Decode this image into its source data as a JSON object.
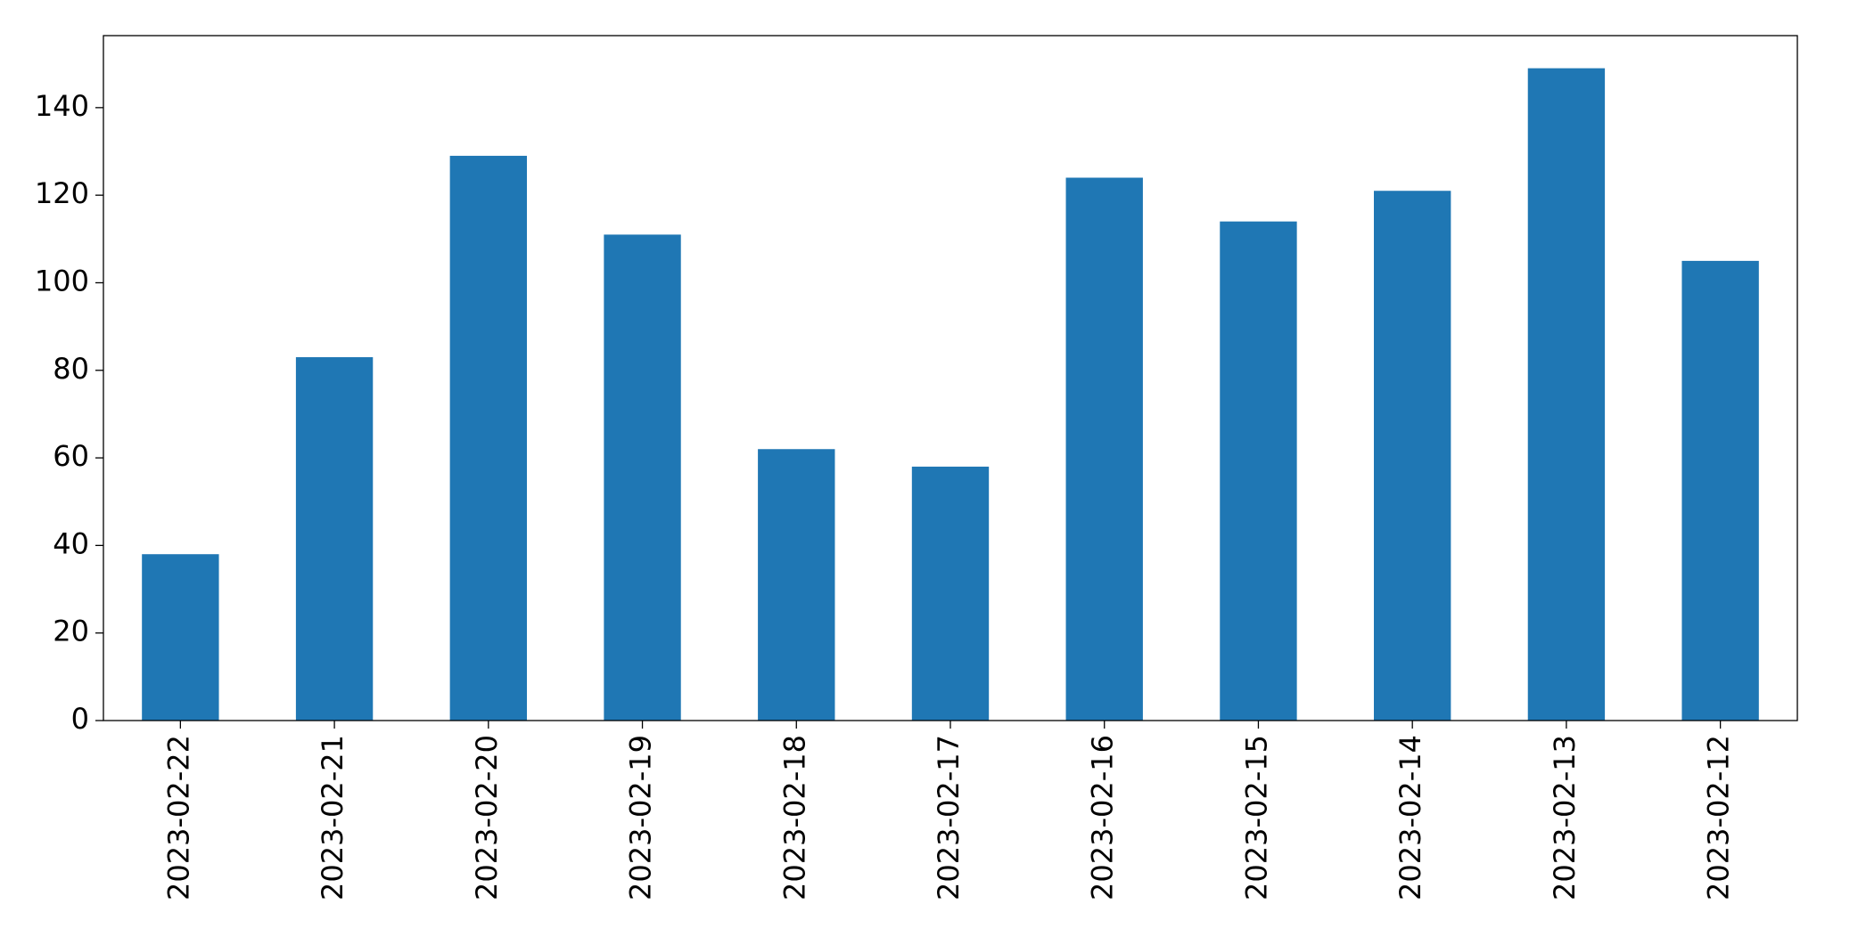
{
  "chart_data": {
    "type": "bar",
    "categories": [
      "2023-02-22",
      "2023-02-21",
      "2023-02-20",
      "2023-02-19",
      "2023-02-18",
      "2023-02-17",
      "2023-02-16",
      "2023-02-15",
      "2023-02-14",
      "2023-02-13",
      "2023-02-12"
    ],
    "values": [
      38,
      83,
      129,
      111,
      62,
      58,
      124,
      114,
      121,
      149,
      105
    ],
    "color": "#1f77b4",
    "ylim": [
      0,
      156.45
    ],
    "yticks": [
      0,
      20,
      40,
      60,
      80,
      100,
      120,
      140
    ],
    "grid": false
  }
}
